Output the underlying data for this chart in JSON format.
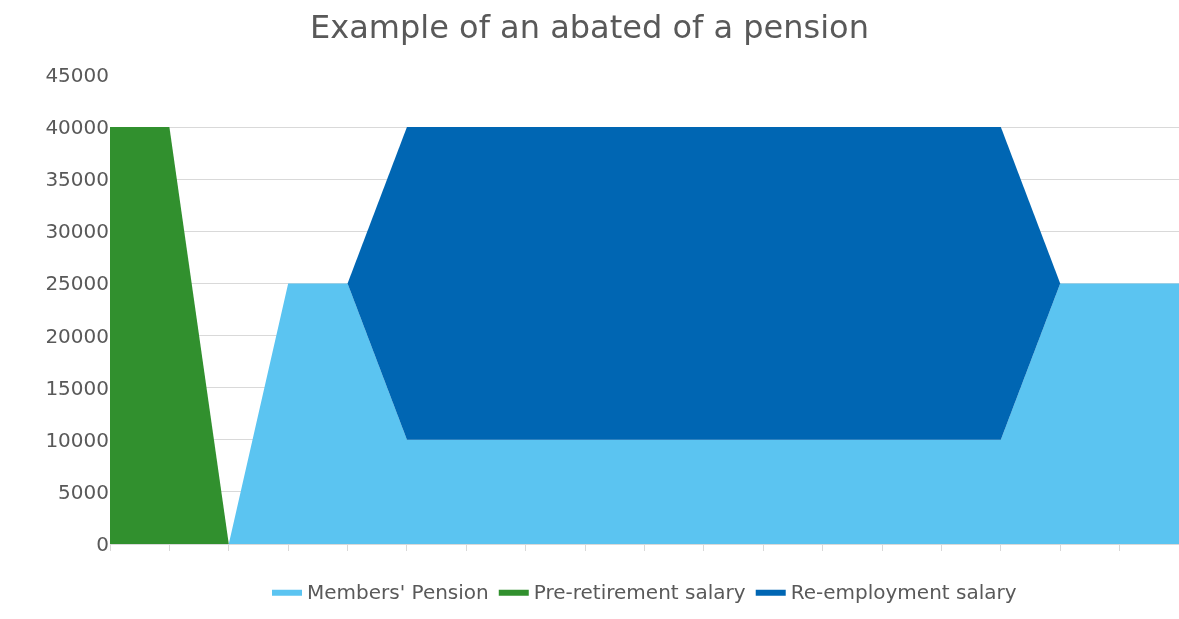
{
  "chart_data": {
    "type": "area",
    "title": "Example of an abated of a pension",
    "stacked": true,
    "categories": [
      null,
      null,
      null,
      null,
      null,
      null,
      null,
      null,
      null,
      null,
      null,
      null,
      null,
      null,
      null,
      null,
      null,
      null,
      null
    ],
    "series": [
      {
        "name": "Members' Pension",
        "color": "#5bc4f1",
        "values": [
          0,
          0,
          0,
          25000,
          25000,
          10000,
          10000,
          10000,
          10000,
          10000,
          10000,
          10000,
          10000,
          10000,
          10000,
          10000,
          25000,
          25000,
          25000
        ]
      },
      {
        "name": "Pre-retirement salary",
        "color": "#31902e",
        "values": [
          40000,
          40000,
          0,
          null,
          null,
          null,
          null,
          null,
          null,
          null,
          null,
          null,
          null,
          null,
          null,
          null,
          null,
          null,
          null
        ]
      },
      {
        "name": "Re-employment salary",
        "color": "#0066b3",
        "values": [
          null,
          null,
          null,
          null,
          0,
          30000,
          30000,
          30000,
          30000,
          30000,
          30000,
          30000,
          30000,
          30000,
          30000,
          30000,
          0,
          null,
          null
        ]
      }
    ],
    "ylim": [
      0,
      45000
    ],
    "yticks": [
      0,
      5000,
      10000,
      15000,
      20000,
      25000,
      30000,
      35000,
      40000,
      45000
    ],
    "grid": "y",
    "legend": "bottom",
    "tick_labels": "y"
  }
}
